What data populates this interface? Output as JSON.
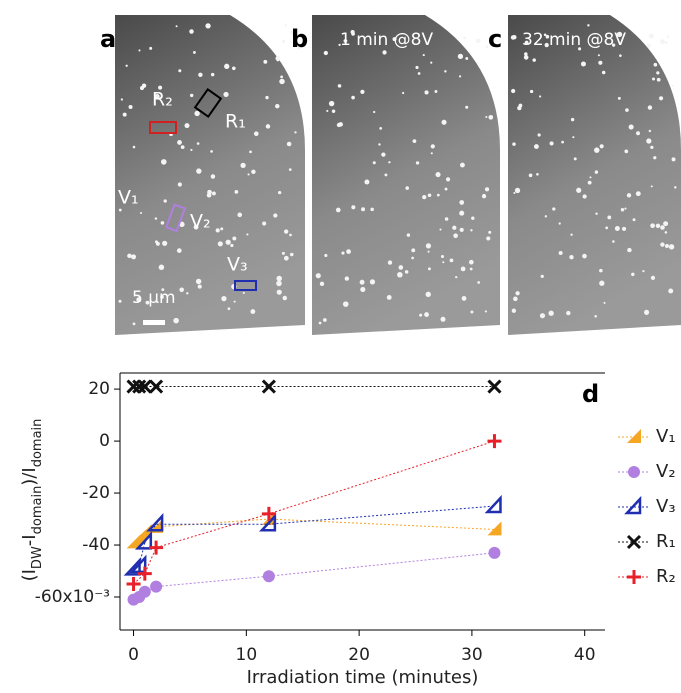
{
  "panels": [
    {
      "letter": "a"
    },
    {
      "letter": "b",
      "caption": "1 min @8V"
    },
    {
      "letter": "c",
      "caption": "32 min @8V"
    }
  ],
  "regions": [
    "R₂",
    "R₁",
    "V₁",
    "V₂",
    "V₃"
  ],
  "scale_bar": "5 µm",
  "chart_data": {
    "type": "scatter",
    "panel_letter": "d",
    "x_label": "Irradiation time (minutes)",
    "y_label": [
      "(I",
      "DW",
      "-I",
      "domain",
      ")/I",
      "domain"
    ],
    "xlim": [
      -1.2,
      41.8
    ],
    "xticks": [
      0,
      10,
      20,
      30,
      40
    ],
    "ylim": [
      -0.0727,
      0.0262
    ],
    "yticks": [
      {
        "value": -0.06,
        "label": "-60x10⁻³"
      },
      {
        "value": -0.04,
        "label": "-40"
      },
      {
        "value": -0.02,
        "label": "-20"
      },
      {
        "value": 0,
        "label": "0"
      },
      {
        "value": 0.02,
        "label": "20"
      }
    ],
    "series": [
      {
        "name": "V₁",
        "color": "#f5a623",
        "marker": "filled-triangle",
        "x": [
          0,
          0.5,
          1,
          2,
          12,
          32
        ],
        "values": [
          -0.039,
          -0.037,
          -0.035,
          -0.033,
          -0.03,
          -0.034
        ]
      },
      {
        "name": "V₂",
        "color": "#b07fe0",
        "marker": "circle",
        "x": [
          0,
          0.5,
          1,
          2,
          12,
          32
        ],
        "values": [
          -0.061,
          -0.06,
          -0.058,
          -0.056,
          -0.052,
          -0.043
        ]
      },
      {
        "name": "V₃",
        "color": "#1f2fb0",
        "marker": "open-triangle",
        "x": [
          0,
          0.5,
          1,
          2,
          12,
          32
        ],
        "values": [
          -0.049,
          -0.048,
          -0.039,
          -0.032,
          -0.032,
          -0.025
        ]
      },
      {
        "name": "R₁",
        "color": "#111111",
        "marker": "cross",
        "x": [
          0,
          0.5,
          1,
          2,
          12,
          32
        ],
        "values": [
          0.021,
          0.021,
          0.021,
          0.021,
          0.021,
          0.021
        ]
      },
      {
        "name": "R₂",
        "color": "#e8202a",
        "marker": "plus",
        "x": [
          0,
          1,
          2,
          12,
          32
        ],
        "values": [
          -0.055,
          -0.051,
          -0.041,
          -0.028,
          0
        ]
      }
    ]
  }
}
